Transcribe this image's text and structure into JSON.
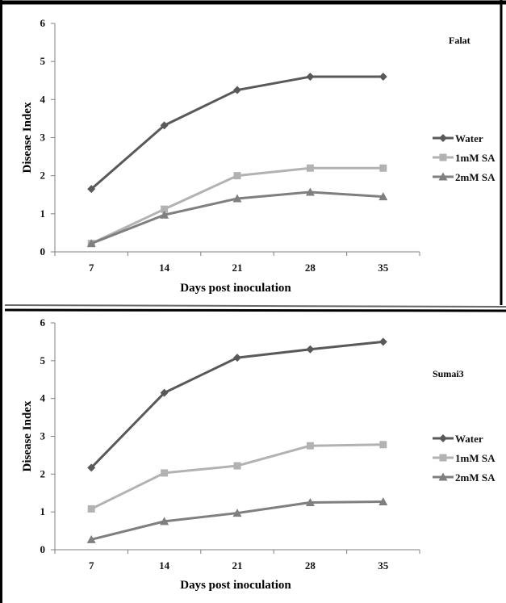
{
  "chart_data": [
    {
      "type": "line",
      "title": "Falat",
      "xlabel": "Days post inoculation",
      "ylabel": "Disease Index",
      "categories": [
        "7",
        "14",
        "21",
        "28",
        "35"
      ],
      "ylim": [
        0,
        6
      ],
      "yticks": [
        "0",
        "1",
        "2",
        "3",
        "4",
        "5",
        "6"
      ],
      "grid": false,
      "legend_position": "right",
      "series": [
        {
          "name": "Water",
          "values": [
            1.65,
            3.32,
            4.25,
            4.6,
            4.6
          ],
          "color": "#595959",
          "marker": "diamond"
        },
        {
          "name": "1mM SA",
          "values": [
            0.22,
            1.12,
            2.0,
            2.2,
            2.2
          ],
          "color": "#b2b2b2",
          "marker": "square"
        },
        {
          "name": "2mM SA",
          "values": [
            0.22,
            0.97,
            1.4,
            1.57,
            1.45
          ],
          "color": "#7f7f7f",
          "marker": "triangle"
        }
      ]
    },
    {
      "type": "line",
      "title": "Sumai3",
      "xlabel": "Days post inoculation",
      "ylabel": "Disease Index",
      "categories": [
        "7",
        "14",
        "21",
        "28",
        "35"
      ],
      "ylim": [
        0,
        6
      ],
      "yticks": [
        "0",
        "1",
        "2",
        "3",
        "4",
        "5",
        "6"
      ],
      "grid": false,
      "legend_position": "right",
      "series": [
        {
          "name": "Water",
          "values": [
            2.17,
            4.15,
            5.08,
            5.3,
            5.5
          ],
          "color": "#595959",
          "marker": "diamond"
        },
        {
          "name": "1mM SA",
          "values": [
            1.08,
            2.03,
            2.22,
            2.75,
            2.78
          ],
          "color": "#b2b2b2",
          "marker": "square"
        },
        {
          "name": "2mM SA",
          "values": [
            0.27,
            0.75,
            0.97,
            1.25,
            1.27
          ],
          "color": "#7f7f7f",
          "marker": "triangle"
        }
      ]
    }
  ]
}
